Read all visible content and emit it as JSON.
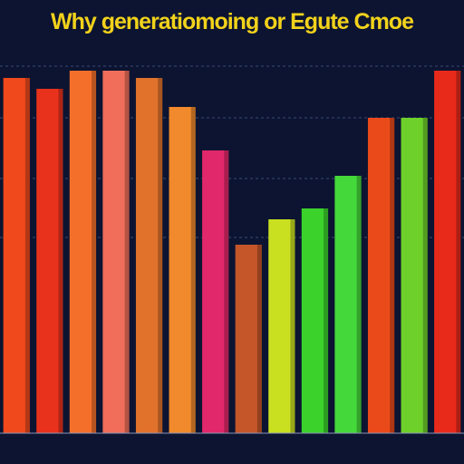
{
  "chart_data": {
    "type": "bar",
    "title": "Why generatiomoing or Egute Cmoe",
    "categories": [
      null,
      null,
      null,
      null,
      null,
      null,
      null,
      null,
      null,
      null,
      null,
      null,
      null,
      null
    ],
    "values": [
      98,
      95,
      100,
      100,
      98,
      90,
      78,
      52,
      59,
      62,
      71,
      87,
      87,
      100
    ],
    "colors": [
      "#f04a1c",
      "#e8321c",
      "#f4702a",
      "#f06e5a",
      "#e0722c",
      "#f08a2c",
      "#e0286a",
      "#c4562a",
      "#c8e020",
      "#3cd22c",
      "#44d83a",
      "#ea4a1a",
      "#6ed02a",
      "#e82a1a"
    ]
  }
}
